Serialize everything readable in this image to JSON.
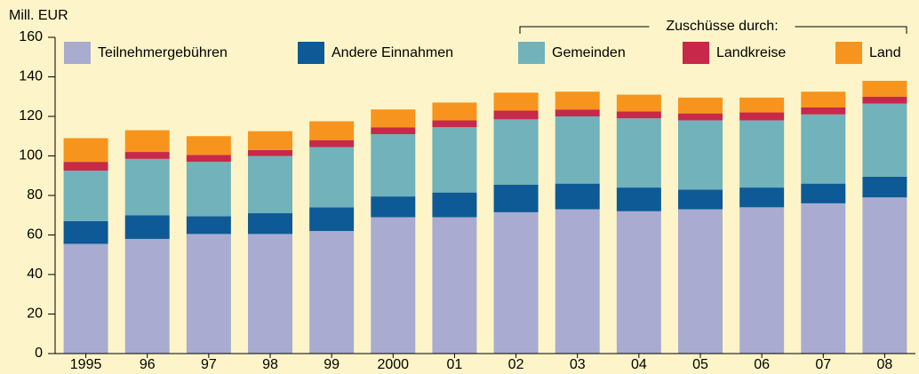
{
  "chart_data": {
    "type": "stacked_bar",
    "y_label": "Mill. EUR",
    "annotation": "Zuschüsse durch:",
    "categories": [
      "1995",
      "96",
      "97",
      "98",
      "99",
      "2000",
      "01",
      "02",
      "03",
      "04",
      "05",
      "06",
      "07",
      "08"
    ],
    "series": [
      {
        "name": "Teilnehmergebühren",
        "color": "#a9acd0",
        "values": [
          55.5,
          58,
          60.5,
          60.5,
          62,
          69,
          69,
          71.5,
          73,
          72,
          73,
          74,
          76,
          79
        ]
      },
      {
        "name": "Andere Einnahmen",
        "color": "#0d5a96",
        "values": [
          11.5,
          12,
          9,
          10.5,
          12,
          10.5,
          12.5,
          14,
          13,
          12,
          10,
          10,
          10,
          10.5
        ]
      },
      {
        "name": "Gemeinden",
        "color": "#71b2bb",
        "values": [
          25.5,
          28.5,
          27.5,
          29,
          30.5,
          31.5,
          33,
          33,
          34,
          35,
          35,
          34,
          35,
          37
        ]
      },
      {
        "name": "Landkreise",
        "color": "#c8284a",
        "values": [
          4.5,
          3.5,
          3.5,
          3,
          3.5,
          3.5,
          3.5,
          4.5,
          3.5,
          3.5,
          3.5,
          4,
          3.5,
          3.5
        ]
      },
      {
        "name": "Land",
        "color": "#f7941d",
        "values": [
          12,
          11,
          9.5,
          9.5,
          9.5,
          9,
          9,
          9,
          9,
          8.5,
          8,
          7.5,
          8,
          8
        ]
      }
    ],
    "ylim": [
      0,
      160
    ],
    "yticks": [
      0,
      20,
      40,
      60,
      80,
      100,
      120,
      140,
      160
    ],
    "grid": false
  }
}
